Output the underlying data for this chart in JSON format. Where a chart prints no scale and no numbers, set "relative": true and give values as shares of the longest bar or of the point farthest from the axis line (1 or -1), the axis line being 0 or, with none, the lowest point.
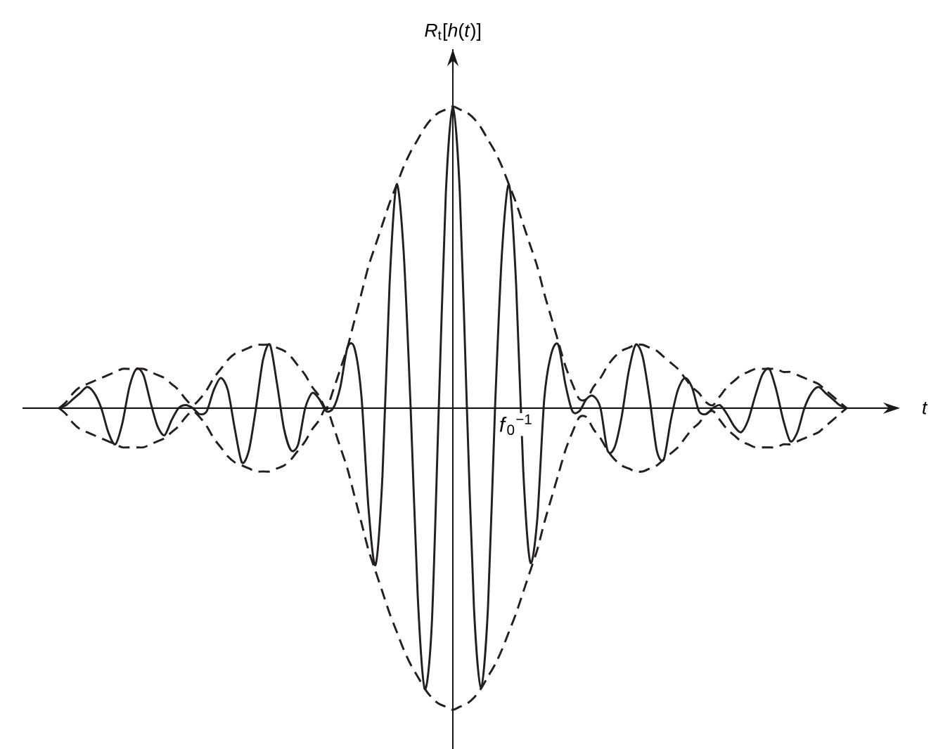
{
  "chart_data": {
    "type": "line",
    "relative": true,
    "xlabel": "t",
    "ylabel": "*R*$_{t}$[*h*(*t*)]",
    "annotations": [
      "*f*$_{0}$$^{−1}$"
    ],
    "categories": [
      null,
      null,
      null,
      null,
      null,
      null,
      null,
      null,
      null,
      null,
      null,
      null,
      null,
      null,
      null,
      null,
      null,
      null,
      null,
      null,
      null,
      null,
      null,
      null,
      null,
      null,
      null,
      null,
      null,
      null,
      null,
      null,
      null,
      null,
      null,
      null,
      null,
      null,
      null,
      null,
      null,
      null,
      null,
      null,
      null,
      null,
      null,
      null,
      null,
      null,
      null,
      null,
      null,
      null,
      null,
      null,
      null,
      null,
      null,
      null,
      null,
      null,
      null,
      null,
      null,
      null,
      null,
      null,
      null,
      null,
      null,
      null,
      null,
      null,
      null,
      null,
      null,
      null,
      null,
      null,
      null,
      null,
      null,
      null,
      null,
      null,
      null,
      null,
      null,
      null,
      null,
      null,
      null,
      null,
      null,
      null,
      null,
      null,
      null,
      null,
      null,
      null,
      null,
      null,
      null,
      null,
      null,
      null,
      null,
      null,
      null,
      null,
      null
    ],
    "series": [
      {
        "color": "#231f20",
        "line_style": "solid",
        "values": [
          0,
          0.01,
          0.03,
          0.05,
          0.07,
          0.05,
          0,
          -0.08,
          -0.12,
          -0.05,
          0.07,
          0.13,
          0.11,
          0.02,
          -0.06,
          -0.09,
          -0.04,
          0,
          0.01,
          0,
          -0.02,
          -0.01,
          0.06,
          0.1,
          0.06,
          -0.07,
          -0.18,
          -0.14,
          0,
          0.16,
          0.21,
          0.08,
          -0.07,
          -0.14,
          -0.12,
          0,
          0.05,
          0.03,
          -0.01,
          0,
          0.07,
          0.2,
          0.2,
          0.04,
          -0.33,
          -0.52,
          -0.22,
          0.41,
          0.74,
          0.52,
          0,
          -0.62,
          -0.93,
          -0.72,
          0,
          0.71,
          1,
          0.71,
          0,
          -0.66,
          -0.93,
          -0.66,
          0,
          0.52,
          0.74,
          0.41,
          -0.2,
          -0.51,
          -0.37,
          0.03,
          0.18,
          0.21,
          0.08,
          -0.01,
          -0.01,
          0.03,
          0.04,
          0,
          -0.14,
          -0.13,
          -0.03,
          0.12,
          0.21,
          0.17,
          0.03,
          -0.14,
          -0.17,
          -0.04,
          0.06,
          0.1,
          0.07,
          -0.01,
          -0.02,
          0,
          0.01,
          -0.02,
          -0.06,
          -0.08,
          -0.04,
          0.04,
          0.11,
          0.13,
          0.06,
          -0.04,
          -0.11,
          -0.08,
          0,
          0.05,
          0.07,
          0.05,
          0.03,
          0.01,
          0
        ]
      },
      {
        "color": "#231f20",
        "line_style": "dashed",
        "values": [
          0,
          0.02,
          0.05,
          0.07,
          0.08,
          0.09,
          0.1,
          0.11,
          0.12,
          0.13,
          0.13,
          0.13,
          0.13,
          0.12,
          0.11,
          0.1,
          0.08,
          0.06,
          0.03,
          0.01,
          0.03,
          0.06,
          0.1,
          0.13,
          0.16,
          0.18,
          0.19,
          0.2,
          0.21,
          0.21,
          0.21,
          0.2,
          0.19,
          0.17,
          0.14,
          0.11,
          0.07,
          0.04,
          0,
          0.06,
          0.13,
          0.2,
          0.29,
          0.38,
          0.47,
          0.54,
          0.61,
          0.68,
          0.74,
          0.8,
          0.85,
          0.89,
          0.93,
          0.96,
          0.98,
          0.99,
          1,
          0.99,
          0.98,
          0.96,
          0.93,
          0.89,
          0.85,
          0.8,
          0.74,
          0.68,
          0.61,
          0.54,
          0.47,
          0.38,
          0.3,
          0.22,
          0.14,
          0.08,
          0.03,
          0.03,
          0.07,
          0.1,
          0.14,
          0.17,
          0.19,
          0.2,
          0.21,
          0.21,
          0.2,
          0.19,
          0.17,
          0.15,
          0.13,
          0.1,
          0.07,
          0.05,
          0.02,
          0.01,
          0.04,
          0.07,
          0.09,
          0.11,
          0.12,
          0.13,
          0.13,
          0.13,
          0.13,
          0.12,
          0.12,
          0.11,
          0.1,
          0.09,
          0.08,
          0.06,
          0.04,
          0.02,
          0
        ]
      },
      {
        "color": "#231f20",
        "line_style": "dashed",
        "values": [
          0,
          -0.02,
          -0.05,
          -0.07,
          -0.08,
          -0.09,
          -0.1,
          -0.11,
          -0.12,
          -0.13,
          -0.13,
          -0.13,
          -0.13,
          -0.12,
          -0.11,
          -0.1,
          -0.08,
          -0.06,
          -0.03,
          -0.01,
          -0.03,
          -0.06,
          -0.1,
          -0.13,
          -0.16,
          -0.18,
          -0.19,
          -0.2,
          -0.21,
          -0.21,
          -0.21,
          -0.2,
          -0.19,
          -0.17,
          -0.14,
          -0.11,
          -0.07,
          -0.04,
          0,
          -0.06,
          -0.13,
          -0.2,
          -0.29,
          -0.38,
          -0.47,
          -0.54,
          -0.61,
          -0.68,
          -0.74,
          -0.8,
          -0.85,
          -0.89,
          -0.93,
          -0.96,
          -0.98,
          -0.99,
          -1,
          -0.99,
          -0.98,
          -0.96,
          -0.93,
          -0.89,
          -0.85,
          -0.8,
          -0.74,
          -0.68,
          -0.61,
          -0.54,
          -0.47,
          -0.38,
          -0.3,
          -0.22,
          -0.14,
          -0.08,
          -0.03,
          -0.03,
          -0.07,
          -0.1,
          -0.14,
          -0.17,
          -0.19,
          -0.2,
          -0.21,
          -0.21,
          -0.2,
          -0.19,
          -0.17,
          -0.15,
          -0.13,
          -0.1,
          -0.07,
          -0.05,
          -0.02,
          -0.01,
          -0.04,
          -0.07,
          -0.09,
          -0.11,
          -0.12,
          -0.13,
          -0.13,
          -0.13,
          -0.13,
          -0.12,
          -0.12,
          -0.11,
          -0.1,
          -0.09,
          -0.08,
          -0.06,
          -0.04,
          -0.02,
          0
        ]
      }
    ]
  }
}
